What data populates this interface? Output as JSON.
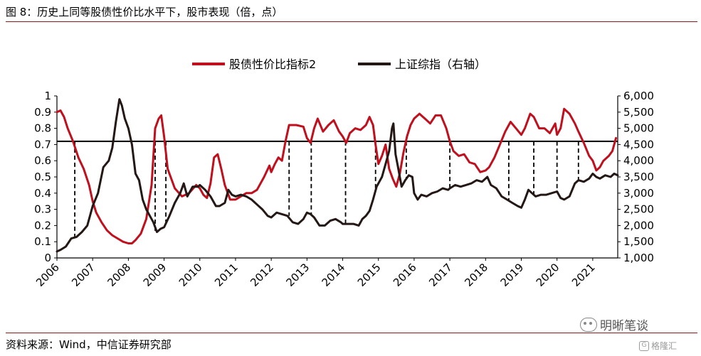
{
  "figure": {
    "title": "图 8：历史上同等股债性价比水平下，股市表现（倍，点）",
    "source": "资料来源：Wind，中信证券研究部",
    "watermark": "明晰笔谈",
    "badge": "格隆汇",
    "badge_icon": "G"
  },
  "chart_data": {
    "type": "line",
    "title": "",
    "xlabel": "",
    "ylabel": "",
    "y2label": "",
    "legend_position": "top-center",
    "x_tick_labels": [
      "2006",
      "2007",
      "2008",
      "2009",
      "2010",
      "2011",
      "2012",
      "2013",
      "2014",
      "2015",
      "2016",
      "2017",
      "2018",
      "2019",
      "2020",
      "2021"
    ],
    "xlim": [
      2006.0,
      2021.7
    ],
    "y_left": {
      "lim": [
        0,
        1
      ],
      "ticks": [
        0,
        0.1,
        0.2,
        0.3,
        0.4,
        0.5,
        0.6,
        0.7,
        0.8,
        0.9,
        1
      ],
      "tick_labels": [
        "0",
        "0.1",
        "0.2",
        "0.3",
        "0.4",
        "0.5",
        "0.6",
        "0.7",
        "0.8",
        "0.9",
        "1"
      ]
    },
    "y_right": {
      "lim": [
        1000,
        6000
      ],
      "ticks": [
        1000,
        1500,
        2000,
        2500,
        3000,
        3500,
        4000,
        4500,
        5000,
        5500,
        6000
      ],
      "tick_labels": [
        "1,000",
        "1,500",
        "2,000",
        "2,500",
        "3,000",
        "3,500",
        "4,000",
        "4,500",
        "5,000",
        "5,500",
        "6,000"
      ]
    },
    "series": [
      {
        "name": "股债性价比指标2",
        "axis": "left",
        "color": "#c0101e",
        "points": [
          [
            2006.0,
            0.9
          ],
          [
            2006.1,
            0.91
          ],
          [
            2006.2,
            0.87
          ],
          [
            2006.3,
            0.8
          ],
          [
            2006.45,
            0.72
          ],
          [
            2006.6,
            0.62
          ],
          [
            2006.75,
            0.55
          ],
          [
            2006.9,
            0.45
          ],
          [
            2007.0,
            0.35
          ],
          [
            2007.1,
            0.28
          ],
          [
            2007.25,
            0.22
          ],
          [
            2007.4,
            0.17
          ],
          [
            2007.55,
            0.14
          ],
          [
            2007.7,
            0.12
          ],
          [
            2007.85,
            0.1
          ],
          [
            2008.0,
            0.09
          ],
          [
            2008.1,
            0.09
          ],
          [
            2008.2,
            0.11
          ],
          [
            2008.35,
            0.15
          ],
          [
            2008.5,
            0.24
          ],
          [
            2008.65,
            0.45
          ],
          [
            2008.75,
            0.8
          ],
          [
            2008.85,
            0.86
          ],
          [
            2008.92,
            0.88
          ],
          [
            2009.0,
            0.75
          ],
          [
            2009.1,
            0.55
          ],
          [
            2009.3,
            0.43
          ],
          [
            2009.5,
            0.38
          ],
          [
            2009.7,
            0.4
          ],
          [
            2009.9,
            0.45
          ],
          [
            2010.0,
            0.43
          ],
          [
            2010.1,
            0.39
          ],
          [
            2010.2,
            0.37
          ],
          [
            2010.3,
            0.46
          ],
          [
            2010.4,
            0.62
          ],
          [
            2010.5,
            0.64
          ],
          [
            2010.6,
            0.55
          ],
          [
            2010.7,
            0.45
          ],
          [
            2010.85,
            0.36
          ],
          [
            2011.0,
            0.36
          ],
          [
            2011.15,
            0.38
          ],
          [
            2011.3,
            0.4
          ],
          [
            2011.45,
            0.4
          ],
          [
            2011.6,
            0.42
          ],
          [
            2011.8,
            0.5
          ],
          [
            2011.95,
            0.57
          ],
          [
            2012.0,
            0.53
          ],
          [
            2012.1,
            0.58
          ],
          [
            2012.2,
            0.62
          ],
          [
            2012.3,
            0.6
          ],
          [
            2012.4,
            0.72
          ],
          [
            2012.5,
            0.82
          ],
          [
            2012.7,
            0.82
          ],
          [
            2012.9,
            0.81
          ],
          [
            2013.0,
            0.74
          ],
          [
            2013.1,
            0.71
          ],
          [
            2013.2,
            0.8
          ],
          [
            2013.3,
            0.86
          ],
          [
            2013.45,
            0.78
          ],
          [
            2013.6,
            0.82
          ],
          [
            2013.75,
            0.85
          ],
          [
            2013.9,
            0.78
          ],
          [
            2014.0,
            0.75
          ],
          [
            2014.1,
            0.71
          ],
          [
            2014.2,
            0.77
          ],
          [
            2014.35,
            0.8
          ],
          [
            2014.5,
            0.79
          ],
          [
            2014.65,
            0.82
          ],
          [
            2014.75,
            0.87
          ],
          [
            2014.85,
            0.82
          ],
          [
            2014.92,
            0.7
          ],
          [
            2015.0,
            0.58
          ],
          [
            2015.1,
            0.63
          ],
          [
            2015.2,
            0.7
          ],
          [
            2015.3,
            0.55
          ],
          [
            2015.4,
            0.49
          ],
          [
            2015.5,
            0.44
          ],
          [
            2015.6,
            0.52
          ],
          [
            2015.7,
            0.65
          ],
          [
            2015.8,
            0.75
          ],
          [
            2015.9,
            0.82
          ],
          [
            2016.0,
            0.86
          ],
          [
            2016.15,
            0.89
          ],
          [
            2016.3,
            0.86
          ],
          [
            2016.45,
            0.83
          ],
          [
            2016.6,
            0.88
          ],
          [
            2016.75,
            0.88
          ],
          [
            2016.9,
            0.8
          ],
          [
            2017.0,
            0.72
          ],
          [
            2017.1,
            0.66
          ],
          [
            2017.25,
            0.63
          ],
          [
            2017.4,
            0.64
          ],
          [
            2017.55,
            0.59
          ],
          [
            2017.7,
            0.58
          ],
          [
            2017.85,
            0.53
          ],
          [
            2018.0,
            0.54
          ],
          [
            2018.1,
            0.56
          ],
          [
            2018.25,
            0.62
          ],
          [
            2018.4,
            0.7
          ],
          [
            2018.55,
            0.78
          ],
          [
            2018.7,
            0.84
          ],
          [
            2018.85,
            0.8
          ],
          [
            2019.0,
            0.76
          ],
          [
            2019.1,
            0.8
          ],
          [
            2019.25,
            0.89
          ],
          [
            2019.35,
            0.87
          ],
          [
            2019.5,
            0.8
          ],
          [
            2019.65,
            0.8
          ],
          [
            2019.8,
            0.77
          ],
          [
            2019.95,
            0.83
          ],
          [
            2020.0,
            0.76
          ],
          [
            2020.1,
            0.8
          ],
          [
            2020.2,
            0.92
          ],
          [
            2020.35,
            0.89
          ],
          [
            2020.5,
            0.83
          ],
          [
            2020.6,
            0.78
          ],
          [
            2020.75,
            0.71
          ],
          [
            2020.9,
            0.63
          ],
          [
            2021.0,
            0.6
          ],
          [
            2021.1,
            0.54
          ],
          [
            2021.2,
            0.56
          ],
          [
            2021.3,
            0.6
          ],
          [
            2021.45,
            0.63
          ],
          [
            2021.55,
            0.66
          ],
          [
            2021.65,
            0.74
          ]
        ]
      },
      {
        "name": "上证综指（右轴）",
        "axis": "right",
        "color": "#231815",
        "points": [
          [
            2006.0,
            1200
          ],
          [
            2006.1,
            1250
          ],
          [
            2006.25,
            1350
          ],
          [
            2006.4,
            1600
          ],
          [
            2006.55,
            1650
          ],
          [
            2006.7,
            1800
          ],
          [
            2006.85,
            2000
          ],
          [
            2007.0,
            2600
          ],
          [
            2007.15,
            3000
          ],
          [
            2007.3,
            3800
          ],
          [
            2007.45,
            4000
          ],
          [
            2007.55,
            4400
          ],
          [
            2007.65,
            5200
          ],
          [
            2007.75,
            5900
          ],
          [
            2007.82,
            5700
          ],
          [
            2007.9,
            5300
          ],
          [
            2008.0,
            5000
          ],
          [
            2008.1,
            4500
          ],
          [
            2008.2,
            3600
          ],
          [
            2008.3,
            3400
          ],
          [
            2008.4,
            2800
          ],
          [
            2008.5,
            2500
          ],
          [
            2008.6,
            2300
          ],
          [
            2008.7,
            2100
          ],
          [
            2008.8,
            1800
          ],
          [
            2008.9,
            1900
          ],
          [
            2009.0,
            1950
          ],
          [
            2009.15,
            2300
          ],
          [
            2009.3,
            2700
          ],
          [
            2009.45,
            3000
          ],
          [
            2009.55,
            3300
          ],
          [
            2009.65,
            2900
          ],
          [
            2009.8,
            3200
          ],
          [
            2009.95,
            3200
          ],
          [
            2010.0,
            3250
          ],
          [
            2010.15,
            3100
          ],
          [
            2010.3,
            2900
          ],
          [
            2010.45,
            2600
          ],
          [
            2010.55,
            2600
          ],
          [
            2010.7,
            2700
          ],
          [
            2010.8,
            3100
          ],
          [
            2010.9,
            2950
          ],
          [
            2011.0,
            2900
          ],
          [
            2011.15,
            2950
          ],
          [
            2011.3,
            2900
          ],
          [
            2011.45,
            2800
          ],
          [
            2011.6,
            2650
          ],
          [
            2011.75,
            2500
          ],
          [
            2011.9,
            2300
          ],
          [
            2012.0,
            2250
          ],
          [
            2012.15,
            2400
          ],
          [
            2012.3,
            2350
          ],
          [
            2012.45,
            2300
          ],
          [
            2012.6,
            2100
          ],
          [
            2012.75,
            2050
          ],
          [
            2012.9,
            2200
          ],
          [
            2013.0,
            2400
          ],
          [
            2013.1,
            2350
          ],
          [
            2013.2,
            2250
          ],
          [
            2013.35,
            2000
          ],
          [
            2013.5,
            2000
          ],
          [
            2013.65,
            2150
          ],
          [
            2013.8,
            2200
          ],
          [
            2013.95,
            2100
          ],
          [
            2014.0,
            2050
          ],
          [
            2014.15,
            2050
          ],
          [
            2014.3,
            2050
          ],
          [
            2014.45,
            2000
          ],
          [
            2014.55,
            2200
          ],
          [
            2014.65,
            2300
          ],
          [
            2014.75,
            2450
          ],
          [
            2014.85,
            2800
          ],
          [
            2014.95,
            3200
          ],
          [
            2015.0,
            3300
          ],
          [
            2015.1,
            3500
          ],
          [
            2015.2,
            3900
          ],
          [
            2015.3,
            4300
          ],
          [
            2015.38,
            5000
          ],
          [
            2015.42,
            5150
          ],
          [
            2015.48,
            4200
          ],
          [
            2015.55,
            3800
          ],
          [
            2015.65,
            3200
          ],
          [
            2015.75,
            3400
          ],
          [
            2015.85,
            3550
          ],
          [
            2015.95,
            3500
          ],
          [
            2016.0,
            3000
          ],
          [
            2016.1,
            2800
          ],
          [
            2016.2,
            2950
          ],
          [
            2016.35,
            2900
          ],
          [
            2016.5,
            3000
          ],
          [
            2016.65,
            3050
          ],
          [
            2016.8,
            3150
          ],
          [
            2016.95,
            3100
          ],
          [
            2017.0,
            3150
          ],
          [
            2017.15,
            3250
          ],
          [
            2017.3,
            3200
          ],
          [
            2017.45,
            3250
          ],
          [
            2017.6,
            3300
          ],
          [
            2017.75,
            3400
          ],
          [
            2017.9,
            3350
          ],
          [
            2018.0,
            3450
          ],
          [
            2018.05,
            3500
          ],
          [
            2018.15,
            3250
          ],
          [
            2018.3,
            3150
          ],
          [
            2018.45,
            2900
          ],
          [
            2018.6,
            2800
          ],
          [
            2018.75,
            2700
          ],
          [
            2018.9,
            2600
          ],
          [
            2019.0,
            2550
          ],
          [
            2019.1,
            2800
          ],
          [
            2019.2,
            3100
          ],
          [
            2019.3,
            3000
          ],
          [
            2019.4,
            2900
          ],
          [
            2019.55,
            2950
          ],
          [
            2019.7,
            2950
          ],
          [
            2019.85,
            3000
          ],
          [
            2020.0,
            3050
          ],
          [
            2020.1,
            2850
          ],
          [
            2020.2,
            2800
          ],
          [
            2020.35,
            2900
          ],
          [
            2020.5,
            3300
          ],
          [
            2020.6,
            3400
          ],
          [
            2020.75,
            3350
          ],
          [
            2020.9,
            3450
          ],
          [
            2021.0,
            3600
          ],
          [
            2021.1,
            3500
          ],
          [
            2021.2,
            3450
          ],
          [
            2021.35,
            3550
          ],
          [
            2021.5,
            3500
          ],
          [
            2021.6,
            3600
          ],
          [
            2021.7,
            3550
          ]
        ]
      }
    ],
    "reference_line": {
      "axis": "left",
      "y": 0.72
    },
    "dashed_markers": [
      {
        "x": 2006.5,
        "y_top_left": 0.72,
        "y_bottom_right": 1650
      },
      {
        "x": 2008.75,
        "y_top_left": 0.72,
        "y_bottom_right": 1800
      },
      {
        "x": 2009.05,
        "y_top_left": 0.72,
        "y_bottom_right": 2050
      },
      {
        "x": 2012.5,
        "y_top_left": 0.72,
        "y_bottom_right": 2300
      },
      {
        "x": 2013.12,
        "y_top_left": 0.72,
        "y_bottom_right": 2350
      },
      {
        "x": 2014.08,
        "y_top_left": 0.72,
        "y_bottom_right": 2050
      },
      {
        "x": 2014.92,
        "y_top_left": 0.72,
        "y_bottom_right": 3150
      },
      {
        "x": 2015.78,
        "y_top_left": 0.72,
        "y_bottom_right": 3450
      },
      {
        "x": 2017.0,
        "y_top_left": 0.72,
        "y_bottom_right": 3150
      },
      {
        "x": 2018.65,
        "y_top_left": 0.72,
        "y_bottom_right": 2750
      },
      {
        "x": 2019.35,
        "y_top_left": 0.72,
        "y_bottom_right": 2950
      },
      {
        "x": 2020.0,
        "y_top_left": 0.72,
        "y_bottom_right": 3050
      },
      {
        "x": 2020.6,
        "y_top_left": 0.72,
        "y_bottom_right": 3350
      }
    ],
    "grid": false
  }
}
